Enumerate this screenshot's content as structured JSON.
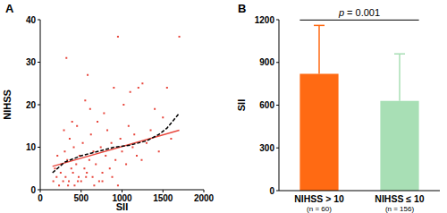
{
  "chart_data": [
    {
      "type": "scatter",
      "panel_label": "A",
      "x_label": "SII",
      "y_label": "NIHSS",
      "xlim": [
        0,
        2000
      ],
      "xticks": [
        0,
        500,
        1000,
        1500,
        2000
      ],
      "ylim": [
        0,
        40
      ],
      "yticks": [
        0,
        10,
        20,
        30,
        40
      ],
      "grid": false,
      "series": [
        {
          "type": "scatter",
          "color": "#e8463c",
          "marker": "square",
          "x": [
            160,
            180,
            200,
            210,
            230,
            250,
            260,
            280,
            300,
            310,
            320,
            330,
            350,
            360,
            380,
            400,
            410,
            420,
            440,
            450,
            470,
            480,
            500,
            520,
            540,
            550,
            570,
            580,
            600,
            620,
            640,
            650,
            680,
            700,
            720,
            740,
            760,
            780,
            800,
            820,
            850,
            870,
            900,
            920,
            950,
            980,
            1000,
            1020,
            1050,
            1080,
            1100,
            1130,
            1150,
            1180,
            1200,
            1250,
            1300,
            1350,
            1400,
            1450,
            1500,
            1550,
            1600,
            1700,
            340,
            460,
            560,
            660,
            760,
            880,
            950,
            1240,
            290,
            390,
            610
          ],
          "values": [
            2,
            5,
            3,
            8,
            1,
            4,
            6,
            2,
            9,
            3,
            31,
            7,
            2,
            12,
            5,
            4,
            10,
            1,
            6,
            15,
            3,
            8,
            2,
            11,
            5,
            21,
            4,
            27,
            7,
            13,
            3,
            9,
            6,
            16,
            2,
            10,
            4,
            18,
            8,
            14,
            5,
            11,
            24,
            7,
            36,
            12,
            9,
            20,
            6,
            15,
            23,
            10,
            13,
            8,
            24,
            25,
            11,
            14,
            19,
            9,
            17,
            24,
            12,
            36,
            1,
            2,
            3,
            1,
            2,
            3,
            1,
            7,
            14,
            16,
            19
          ]
        },
        {
          "type": "line",
          "color": "#e8463c",
          "line_style": "solid",
          "x": [
            150,
            1700
          ],
          "values": [
            5.5,
            14
          ]
        },
        {
          "type": "line",
          "color": "#000000",
          "line_style": "dashed",
          "x": [
            150,
            300,
            500,
            700,
            900,
            1100,
            1300,
            1450,
            1550,
            1700
          ],
          "values": [
            4,
            6.5,
            8,
            9,
            10,
            10.5,
            11.5,
            13,
            14.5,
            18
          ]
        }
      ]
    },
    {
      "type": "bar",
      "panel_label": "B",
      "y_label": "SII",
      "categories": [
        "NIHSS > 10",
        "NIHSS ≤ 10"
      ],
      "n_labels": [
        "(n = 60)",
        "(n = 156)"
      ],
      "values": [
        820,
        630
      ],
      "errors": [
        340,
        330
      ],
      "colors": [
        "#ff6a13",
        "#a8dfb5"
      ],
      "ylim": [
        0,
        1200
      ],
      "yticks": [
        0,
        300,
        600,
        900,
        1200
      ],
      "grid": false,
      "annotation": "p = 0.001"
    }
  ]
}
